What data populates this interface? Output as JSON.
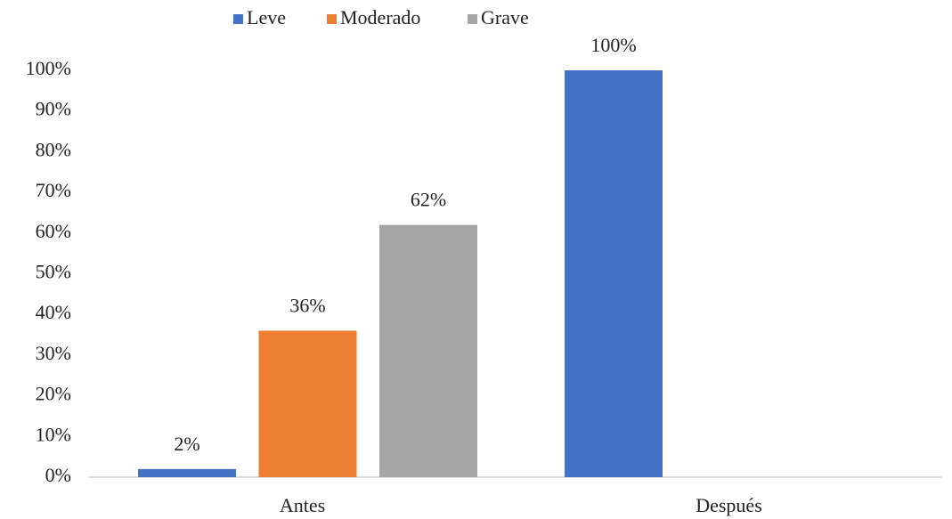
{
  "chart_data": {
    "type": "bar",
    "categories": [
      "Antes",
      "Después"
    ],
    "series": [
      {
        "name": "Leve",
        "color": "#4472c4",
        "values": [
          2,
          100
        ],
        "value_labels": [
          "2%",
          "100%"
        ]
      },
      {
        "name": "Moderado",
        "color": "#ed7d31",
        "values": [
          36,
          null
        ],
        "value_labels": [
          "36%",
          null
        ]
      },
      {
        "name": "Grave",
        "color": "#a5a5a5",
        "values": [
          62,
          null
        ],
        "value_labels": [
          "62%",
          null
        ]
      }
    ],
    "ylim": [
      0,
      100
    ],
    "yticks": [
      {
        "value": 0,
        "label": "0%"
      },
      {
        "value": 10,
        "label": "10%"
      },
      {
        "value": 20,
        "label": "20%"
      },
      {
        "value": 30,
        "label": "30%"
      },
      {
        "value": 40,
        "label": "40%"
      },
      {
        "value": 50,
        "label": "50%"
      },
      {
        "value": 60,
        "label": "60%"
      },
      {
        "value": 70,
        "label": "70%"
      },
      {
        "value": 80,
        "label": "80%"
      },
      {
        "value": 90,
        "label": "90%"
      },
      {
        "value": 100,
        "label": "100%"
      }
    ],
    "legend": "top"
  }
}
